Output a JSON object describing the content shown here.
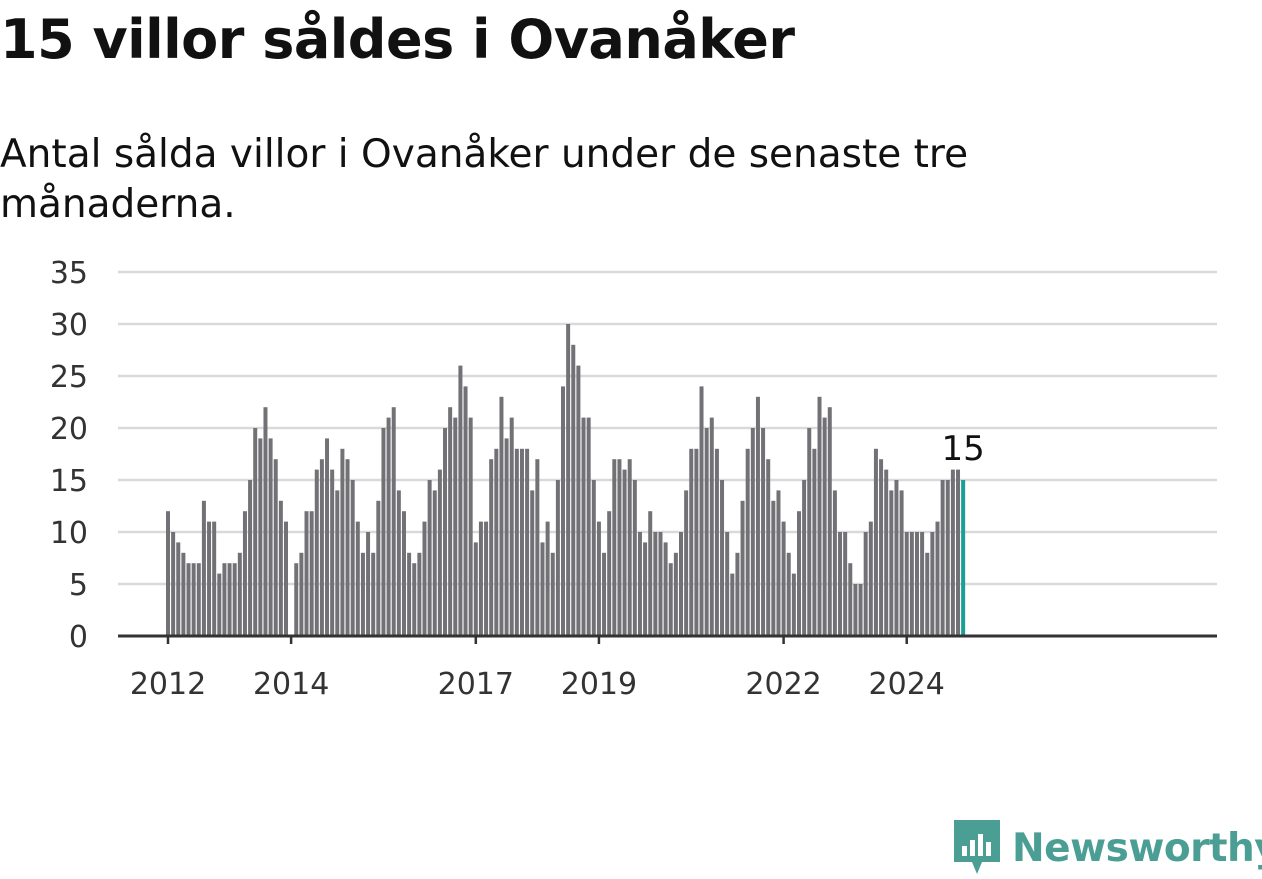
{
  "header": {
    "title": "15 villor såldes i Ovanåker",
    "subtitle": "Antal sålda villor i Ovanåker under de senaste tre månaderna."
  },
  "brand": {
    "name": "Newsworthy",
    "icon": "newsworthy-logo-icon",
    "color": "#4a9e94"
  },
  "colors": {
    "bar": "#727276",
    "highlight": "#1b9e95",
    "grid": "#d9d9d9",
    "axis": "#333333"
  },
  "chart_data": {
    "type": "bar",
    "title": "",
    "xlabel": "",
    "ylabel": "",
    "ylim": [
      0,
      35
    ],
    "yticks": [
      "0",
      "5",
      "10",
      "15",
      "20",
      "25",
      "30",
      "35"
    ],
    "xticks": [
      "2012",
      "2014",
      "2017",
      "2019",
      "2022",
      "2024"
    ],
    "x_start": "2012-01",
    "x_end": "2024-12",
    "values": [
      12,
      10,
      9,
      8,
      7,
      7,
      7,
      13,
      11,
      11,
      6,
      7,
      7,
      7,
      8,
      12,
      15,
      20,
      19,
      22,
      19,
      17,
      13,
      11,
      0,
      7,
      8,
      12,
      12,
      16,
      17,
      19,
      16,
      14,
      18,
      17,
      15,
      11,
      8,
      10,
      8,
      13,
      20,
      21,
      22,
      14,
      12,
      8,
      7,
      8,
      11,
      15,
      14,
      16,
      20,
      22,
      21,
      26,
      24,
      21,
      9,
      11,
      11,
      17,
      18,
      23,
      19,
      21,
      18,
      18,
      18,
      14,
      17,
      9,
      11,
      8,
      15,
      24,
      30,
      28,
      26,
      21,
      21,
      15,
      11,
      8,
      12,
      17,
      17,
      16,
      17,
      15,
      10,
      9,
      12,
      10,
      10,
      9,
      7,
      8,
      10,
      14,
      18,
      18,
      24,
      20,
      21,
      18,
      15,
      10,
      6,
      8,
      13,
      18,
      20,
      23,
      20,
      17,
      13,
      14,
      11,
      8,
      6,
      12,
      15,
      20,
      18,
      23,
      21,
      22,
      14,
      10,
      10,
      7,
      5,
      5,
      10,
      11,
      18,
      17,
      16,
      14,
      15,
      14,
      10,
      10,
      10,
      10,
      8,
      10,
      11,
      15,
      15,
      16,
      16,
      15
    ],
    "highlight_last": true,
    "last_value_label": "15",
    "grid": true,
    "legend": "none"
  }
}
